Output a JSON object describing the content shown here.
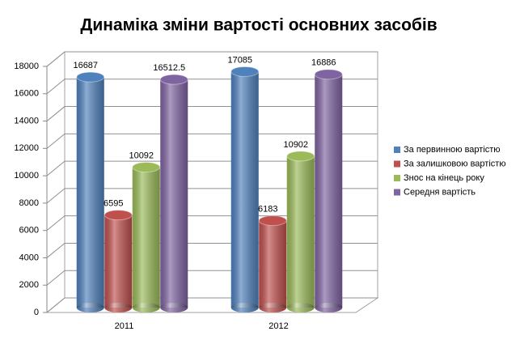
{
  "chart_data": {
    "type": "bar3d",
    "title": "Динаміка зміни вартості основних засобів",
    "categories": [
      "2011",
      "2012"
    ],
    "series": [
      {
        "name": "За первинною вартістю",
        "color": "#4f81bd",
        "values": [
          16687,
          17085
        ]
      },
      {
        "name": "За залишковою вартістю",
        "color": "#c0504d",
        "values": [
          6595,
          6183
        ]
      },
      {
        "name": "Знос на кінець року",
        "color": "#9bbb59",
        "values": [
          10092,
          10902
        ]
      },
      {
        "name": "Середня вартість",
        "color": "#8064a2",
        "values": [
          16512.5,
          16886
        ]
      }
    ],
    "ylim": [
      0,
      18000
    ],
    "yticks": [
      0,
      2000,
      4000,
      6000,
      8000,
      10000,
      12000,
      14000,
      16000,
      18000
    ],
    "grid": true,
    "legend": "right"
  }
}
